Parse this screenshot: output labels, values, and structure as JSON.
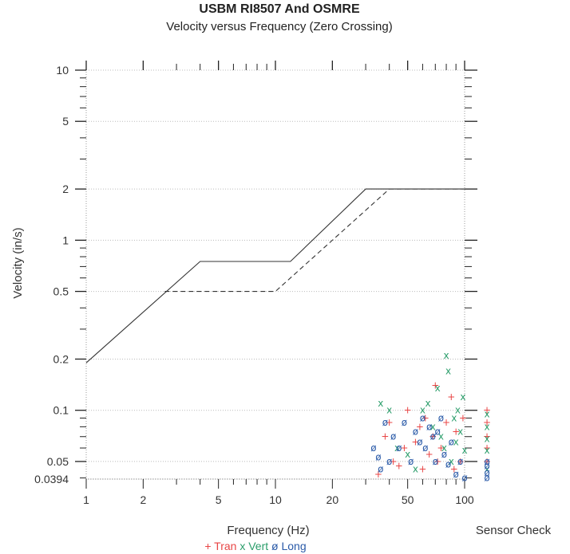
{
  "chart_data": {
    "type": "scatter",
    "title": "USBM RI8507 And OSMRE",
    "subtitle": "Velocity versus Frequency (Zero Crossing)",
    "xlabel": "Frequency (Hz)",
    "ylabel": "Velocity (in/s)",
    "x_scale": "log",
    "y_scale": "log",
    "xlim": [
      1,
      100
    ],
    "ylim": [
      0.0394,
      10
    ],
    "x_ticks": [
      1,
      2,
      5,
      10,
      20,
      50,
      100
    ],
    "x_tick_labels": [
      "1",
      "2",
      "5",
      "10",
      "20",
      "50",
      "100"
    ],
    "y_ticks": [
      0.0394,
      0.05,
      0.1,
      0.2,
      0.5,
      1,
      2,
      5,
      10
    ],
    "y_tick_labels": [
      "0.0394",
      "0.05",
      "0.1",
      "0.2",
      "0.5",
      "1",
      "2",
      "5",
      "10"
    ],
    "sensor_check_label": "Sensor Check",
    "grid": true,
    "legend_position": "bottom",
    "limit_lines": [
      {
        "style": "solid",
        "points": [
          [
            1,
            0.19
          ],
          [
            4,
            0.75
          ],
          [
            12,
            0.75
          ],
          [
            30,
            2.0
          ],
          [
            100,
            2.0
          ]
        ]
      },
      {
        "style": "dashed",
        "points": [
          [
            2.6,
            0.5
          ],
          [
            10,
            0.5
          ],
          [
            40,
            2.0
          ],
          [
            100,
            2.0
          ]
        ]
      }
    ],
    "series": [
      {
        "name": "Tran",
        "marker": "+",
        "color": "#e84545",
        "points": [
          [
            35,
            0.042
          ],
          [
            38,
            0.07
          ],
          [
            40,
            0.085
          ],
          [
            42,
            0.05
          ],
          [
            45,
            0.047
          ],
          [
            48,
            0.06
          ],
          [
            50,
            0.1
          ],
          [
            55,
            0.065
          ],
          [
            58,
            0.08
          ],
          [
            60,
            0.045
          ],
          [
            62,
            0.09
          ],
          [
            65,
            0.055
          ],
          [
            68,
            0.07
          ],
          [
            70,
            0.14
          ],
          [
            72,
            0.05
          ],
          [
            75,
            0.06
          ],
          [
            80,
            0.085
          ],
          [
            85,
            0.12
          ],
          [
            88,
            0.045
          ],
          [
            90,
            0.075
          ],
          [
            95,
            0.05
          ],
          [
            98,
            0.09
          ]
        ]
      },
      {
        "name": "Vert",
        "marker": "x",
        "color": "#2a9d6a",
        "points": [
          [
            36,
            0.11
          ],
          [
            40,
            0.1
          ],
          [
            44,
            0.06
          ],
          [
            50,
            0.055
          ],
          [
            55,
            0.045
          ],
          [
            60,
            0.1
          ],
          [
            64,
            0.11
          ],
          [
            68,
            0.08
          ],
          [
            72,
            0.135
          ],
          [
            75,
            0.07
          ],
          [
            78,
            0.06
          ],
          [
            80,
            0.21
          ],
          [
            82,
            0.17
          ],
          [
            85,
            0.05
          ],
          [
            88,
            0.09
          ],
          [
            90,
            0.065
          ],
          [
            92,
            0.1
          ],
          [
            95,
            0.075
          ],
          [
            98,
            0.12
          ],
          [
            100,
            0.058
          ]
        ]
      },
      {
        "name": "Long",
        "marker": "ø",
        "color": "#2a5aa8",
        "points": [
          [
            33,
            0.06
          ],
          [
            35,
            0.053
          ],
          [
            36,
            0.045
          ],
          [
            38,
            0.085
          ],
          [
            40,
            0.05
          ],
          [
            42,
            0.07
          ],
          [
            45,
            0.06
          ],
          [
            48,
            0.085
          ],
          [
            52,
            0.05
          ],
          [
            55,
            0.075
          ],
          [
            58,
            0.065
          ],
          [
            60,
            0.09
          ],
          [
            62,
            0.06
          ],
          [
            65,
            0.08
          ],
          [
            68,
            0.07
          ],
          [
            70,
            0.05
          ],
          [
            72,
            0.075
          ],
          [
            75,
            0.09
          ],
          [
            78,
            0.055
          ],
          [
            82,
            0.048
          ],
          [
            85,
            0.065
          ],
          [
            90,
            0.042
          ],
          [
            95,
            0.05
          ],
          [
            100,
            0.04
          ]
        ]
      }
    ],
    "sensor_check": {
      "Tran": [
        0.1,
        0.085,
        0.07,
        0.06,
        0.05
      ],
      "Vert": [
        0.095,
        0.08,
        0.068,
        0.058,
        0.045
      ],
      "Long": [
        0.05,
        0.047,
        0.043,
        0.04
      ]
    }
  }
}
